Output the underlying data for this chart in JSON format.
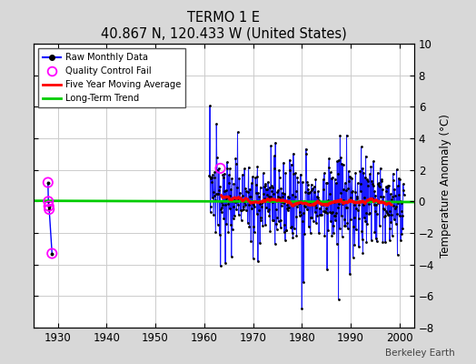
{
  "title": "TERMO 1 E",
  "subtitle": "40.867 N, 120.433 W (United States)",
  "ylabel": "Temperature Anomaly (°C)",
  "watermark": "Berkeley Earth",
  "xlim": [
    1925,
    2003
  ],
  "ylim": [
    -8,
    10
  ],
  "yticks": [
    -8,
    -6,
    -4,
    -2,
    0,
    2,
    4,
    6,
    8,
    10
  ],
  "xticks": [
    1930,
    1940,
    1950,
    1960,
    1970,
    1980,
    1990,
    2000
  ],
  "bg_color": "#d8d8d8",
  "plot_bg_color": "#ffffff",
  "raw_line_color": "#0000ff",
  "raw_dot_color": "#000000",
  "qc_fail_color": "#ff00ff",
  "moving_avg_color": "#ff0000",
  "trend_color": "#00cc00",
  "grid_color": "#cccccc",
  "early_times": [
    1928.0,
    1928.08,
    1928.17,
    1928.25,
    1928.83
  ],
  "early_vals": [
    1.2,
    0.0,
    -0.3,
    -0.5,
    -3.3
  ],
  "early_qc_mask": [
    true,
    true,
    true,
    true,
    true
  ],
  "qc_1963_time": 1963.3,
  "qc_1963_val": 2.1,
  "main_seed": 137,
  "main_start": 1961,
  "main_end": 2001
}
